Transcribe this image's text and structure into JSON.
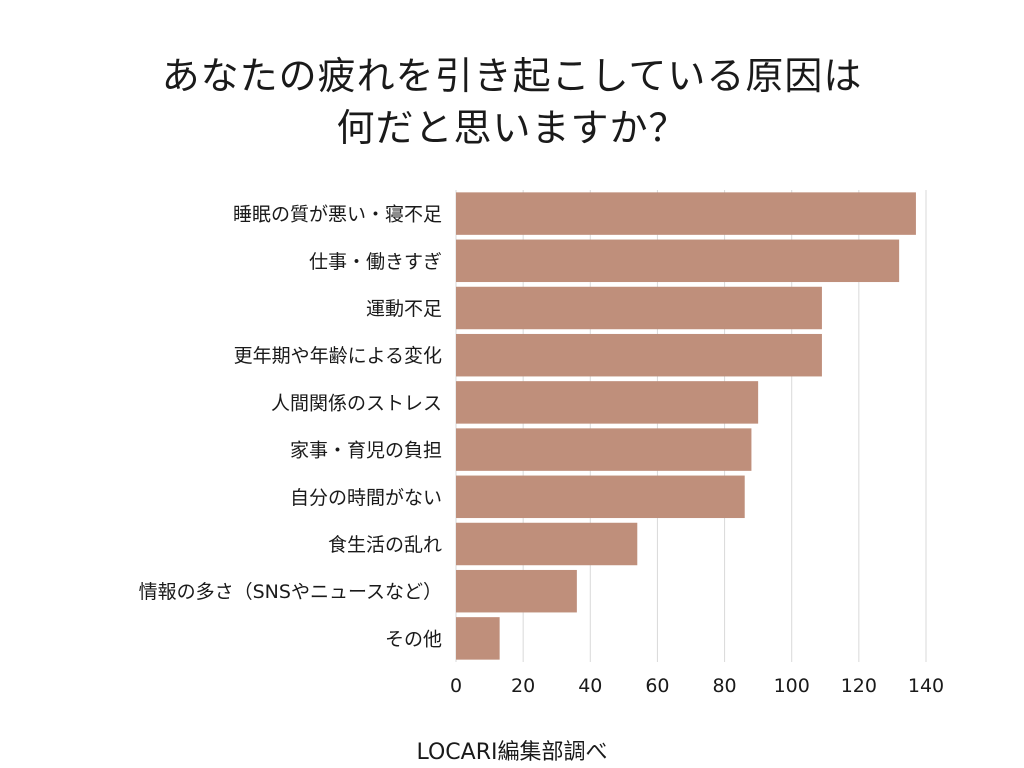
{
  "chart_data": {
    "type": "bar",
    "orientation": "horizontal",
    "title_lines": [
      "あなたの疲れを引き起こしている原因は",
      "何だと思いますか？"
    ],
    "categories": [
      "睡眠の質が悪い・寝不足",
      "仕事・働きすぎ",
      "運動不足",
      "更年期や年齢による変化",
      "人間関係のストレス",
      "家事・育児の負担",
      "自分の時間がない",
      "食生活の乱れ",
      "情報の多さ（SNSやニュースなど）",
      "その他"
    ],
    "values": [
      137,
      132,
      109,
      109,
      90,
      88,
      86,
      54,
      36,
      13
    ],
    "xlim": [
      0,
      140
    ],
    "xticks": [
      "0",
      "20",
      "40",
      "60",
      "80",
      "100",
      "120",
      "140"
    ],
    "grid": "vertical",
    "bar_color": "#bf8f7b",
    "grid_color": "#d9d9d9"
  },
  "footer": "LOCARI編集部調べ"
}
